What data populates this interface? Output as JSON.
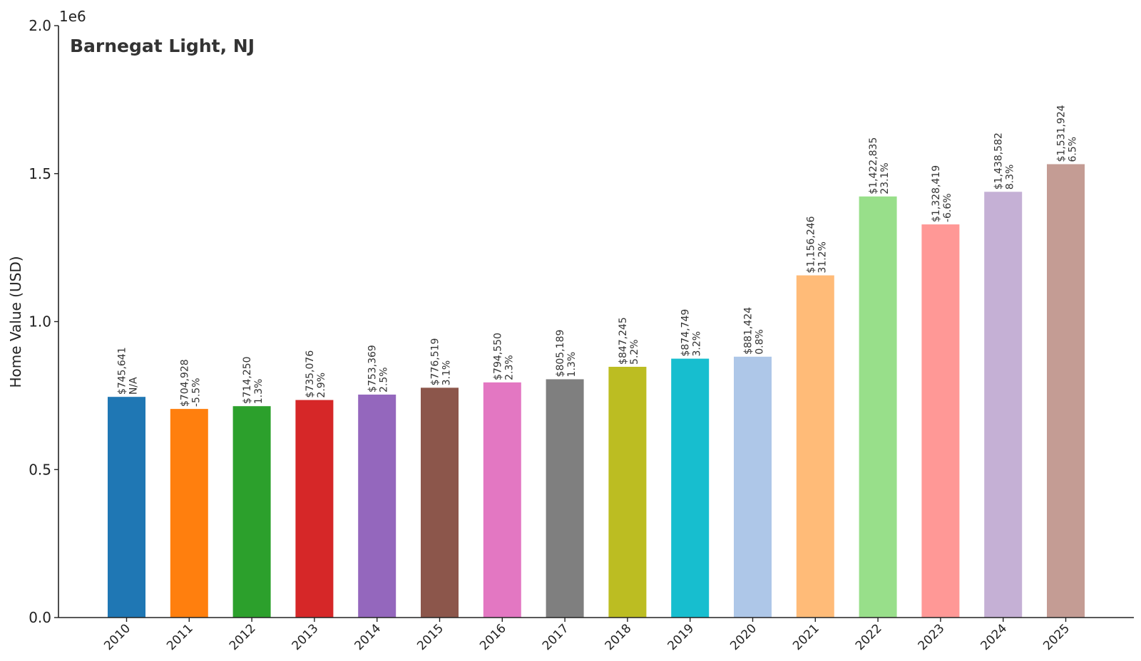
{
  "chart_data": {
    "type": "bar",
    "title": "Barnegat Light, NJ",
    "xlabel": "",
    "ylabel": "Home Value (USD)",
    "y_scale_label": "1e6",
    "ylim": [
      0,
      2000000
    ],
    "yticks": [
      0,
      500000,
      1000000,
      1500000,
      2000000
    ],
    "ytick_labels": [
      "0.0",
      "0.5",
      "1.0",
      "1.5",
      "2.0"
    ],
    "grid": false,
    "categories": [
      "2010",
      "2011",
      "2012",
      "2013",
      "2014",
      "2015",
      "2016",
      "2017",
      "2018",
      "2019",
      "2020",
      "2021",
      "2022",
      "2023",
      "2024",
      "2025"
    ],
    "values": [
      745641,
      704928,
      714250,
      735076,
      753369,
      776519,
      794550,
      805189,
      847245,
      874749,
      881424,
      1156246,
      1422835,
      1328419,
      1438582,
      1531924
    ],
    "value_labels": [
      "$745,641",
      "$704,928",
      "$714,250",
      "$735,076",
      "$753,369",
      "$776,519",
      "$794,550",
      "$805,189",
      "$847,245",
      "$874,749",
      "$881,424",
      "$1,156,246",
      "$1,422,835",
      "$1,328,419",
      "$1,438,582",
      "$1,531,924"
    ],
    "change_labels": [
      "N/A",
      "-5.5%",
      "1.3%",
      "2.9%",
      "2.5%",
      "3.1%",
      "2.3%",
      "1.3%",
      "5.2%",
      "3.2%",
      "0.8%",
      "31.2%",
      "23.1%",
      "-6.6%",
      "8.3%",
      "6.5%"
    ],
    "colors": [
      "#1f77b4",
      "#ff7f0e",
      "#2ca02c",
      "#d62728",
      "#9467bd",
      "#8c564b",
      "#e377c2",
      "#7f7f7f",
      "#bcbd22",
      "#17becf",
      "#aec7e8",
      "#ffbb78",
      "#98df8a",
      "#ff9896",
      "#c5b0d5",
      "#c49c94"
    ]
  }
}
